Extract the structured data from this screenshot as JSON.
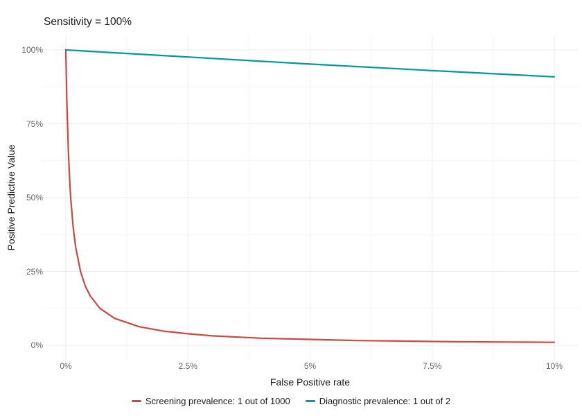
{
  "title": "Sensitivity = 100%",
  "axes": {
    "x_label": "False Positive rate",
    "y_label": "Positive Predictive Value"
  },
  "legend": {
    "items": [
      {
        "label": "Screening prevalence: 1 out of 1000",
        "color": "#CB4942"
      },
      {
        "label": "Diagnostic prevalence: 1 out of 2",
        "color": "#00979D"
      }
    ]
  },
  "colors": {
    "screening_line": "#CB4942",
    "diagnostic_line": "#00979D",
    "grid_major": "#EBEBEB",
    "grid_minor": "#F5F5F5",
    "tick_text": "#656565",
    "title_text": "#1A1A1A",
    "background": "#FFFFFF"
  },
  "chart_data": {
    "type": "line",
    "title": "Sensitivity = 100%",
    "xlabel": "False Positive rate",
    "ylabel": "Positive Predictive Value",
    "xlim": [
      0,
      10
    ],
    "ylim": [
      0,
      100
    ],
    "x_ticks": [
      0,
      2.5,
      5,
      7.5,
      10
    ],
    "x_tick_labels": [
      "0%",
      "2.5%",
      "5%",
      "7.5%",
      "10%"
    ],
    "y_ticks": [
      0,
      25,
      50,
      75,
      100
    ],
    "y_tick_labels": [
      "0%",
      "25%",
      "50%",
      "75%",
      "100%"
    ],
    "x_minor_ticks": [
      1.25,
      3.75,
      6.25,
      8.75
    ],
    "y_minor_ticks": [
      12.5,
      37.5,
      62.5,
      87.5
    ],
    "grid": true,
    "legend_position": "bottom",
    "series": [
      {
        "name": "Screening prevalence: 1 out of 1000",
        "color": "#CB4942",
        "x": [
          0,
          0.02,
          0.05,
          0.08,
          0.1,
          0.15,
          0.2,
          0.3,
          0.4,
          0.5,
          0.7,
          1,
          1.5,
          2,
          2.5,
          3,
          4,
          5,
          6,
          7,
          7.5,
          8,
          9,
          10
        ],
        "y": [
          100,
          83.3,
          66.7,
          55.6,
          50,
          40,
          33.4,
          25,
          20,
          16.7,
          12.5,
          9.1,
          6.3,
          4.8,
          3.9,
          3.2,
          2.4,
          2.0,
          1.6,
          1.4,
          1.3,
          1.2,
          1.1,
          1.0
        ]
      },
      {
        "name": "Diagnostic prevalence: 1 out of 2",
        "color": "#00979D",
        "x": [
          0,
          2.5,
          5,
          7.5,
          10
        ],
        "y": [
          100,
          97.6,
          95.2,
          93.0,
          90.9
        ]
      }
    ]
  }
}
